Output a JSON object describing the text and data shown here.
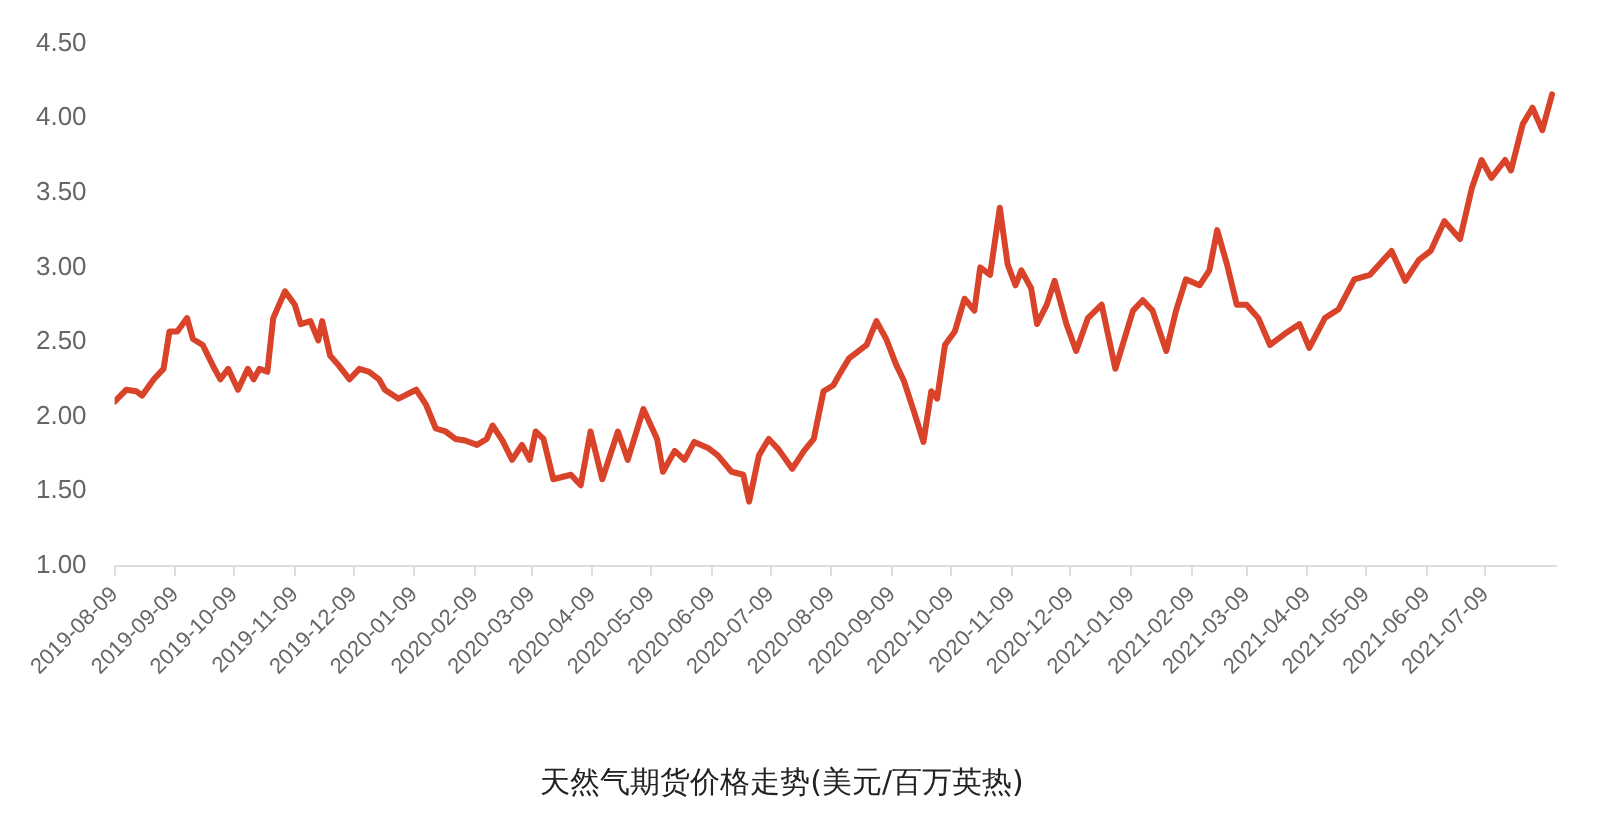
{
  "chart_data": {
    "type": "line",
    "title": "天然气期货价格走势(美元/百万英热)",
    "x": [
      "2019-08-09",
      "2019-08-15",
      "2019-08-20",
      "2019-08-23",
      "2019-08-29",
      "2019-09-03",
      "2019-09-06",
      "2019-09-10",
      "2019-09-15",
      "2019-09-18",
      "2019-09-23",
      "2019-09-29",
      "2019-10-02",
      "2019-10-06",
      "2019-10-11",
      "2019-10-16",
      "2019-10-19",
      "2019-10-22",
      "2019-10-26",
      "2019-10-29",
      "2019-11-04",
      "2019-11-09",
      "2019-11-12",
      "2019-11-17",
      "2019-11-21",
      "2019-11-23",
      "2019-11-27",
      "2019-12-01",
      "2019-12-07",
      "2019-12-12",
      "2019-12-17",
      "2019-12-22",
      "2019-12-25",
      "2020-01-01",
      "2020-01-10",
      "2020-01-15",
      "2020-01-20",
      "2020-01-25",
      "2020-01-30",
      "2020-02-04",
      "2020-02-10",
      "2020-02-15",
      "2020-02-18",
      "2020-02-23",
      "2020-02-28",
      "2020-03-04",
      "2020-03-08",
      "2020-03-11",
      "2020-03-15",
      "2020-03-20",
      "2020-03-29",
      "2020-04-03",
      "2020-04-08",
      "2020-04-14",
      "2020-04-22",
      "2020-04-27",
      "2020-05-05",
      "2020-05-12",
      "2020-05-15",
      "2020-05-21",
      "2020-05-26",
      "2020-05-31",
      "2020-06-07",
      "2020-06-12",
      "2020-06-19",
      "2020-06-25",
      "2020-06-28",
      "2020-07-03",
      "2020-07-08",
      "2020-07-13",
      "2020-07-20",
      "2020-07-26",
      "2020-07-31",
      "2020-08-05",
      "2020-08-10",
      "2020-08-13",
      "2020-08-18",
      "2020-08-23",
      "2020-08-27",
      "2020-09-01",
      "2020-09-06",
      "2020-09-11",
      "2020-09-15",
      "2020-09-20",
      "2020-09-25",
      "2020-09-29",
      "2020-10-02",
      "2020-10-06",
      "2020-10-11",
      "2020-10-16",
      "2020-10-21",
      "2020-10-24",
      "2020-10-29",
      "2020-11-03",
      "2020-11-07",
      "2020-11-11",
      "2020-11-14",
      "2020-11-19",
      "2020-11-22",
      "2020-11-27",
      "2020-12-01",
      "2020-12-07",
      "2020-12-12",
      "2020-12-18",
      "2020-12-25",
      "2021-01-01",
      "2021-01-10",
      "2021-01-15",
      "2021-01-20",
      "2021-01-27",
      "2021-02-01",
      "2021-02-06",
      "2021-02-13",
      "2021-02-18",
      "2021-02-22",
      "2021-02-27",
      "2021-03-04",
      "2021-03-09",
      "2021-03-15",
      "2021-03-21",
      "2021-03-28",
      "2021-04-05",
      "2021-04-10",
      "2021-04-18",
      "2021-04-25",
      "2021-05-03",
      "2021-05-11",
      "2021-05-22",
      "2021-05-29",
      "2021-06-05",
      "2021-06-11",
      "2021-06-18",
      "2021-06-26",
      "2021-07-02",
      "2021-07-07",
      "2021-07-12",
      "2021-07-19",
      "2021-07-22",
      "2021-07-28",
      "2021-08-02",
      "2021-08-07",
      "2021-08-12"
    ],
    "series": [
      {
        "color": "#d9432a",
        "values": [
          2.1,
          2.18,
          2.17,
          2.14,
          2.25,
          2.32,
          2.57,
          2.57,
          2.66,
          2.52,
          2.48,
          2.32,
          2.25,
          2.32,
          2.18,
          2.32,
          2.25,
          2.32,
          2.3,
          2.66,
          2.84,
          2.75,
          2.62,
          2.64,
          2.51,
          2.64,
          2.41,
          2.35,
          2.25,
          2.32,
          2.3,
          2.25,
          2.18,
          2.12,
          2.18,
          2.08,
          1.92,
          1.9,
          1.85,
          1.84,
          1.81,
          1.85,
          1.94,
          1.84,
          1.71,
          1.81,
          1.71,
          1.9,
          1.85,
          1.58,
          1.61,
          1.54,
          1.9,
          1.58,
          1.9,
          1.71,
          2.05,
          1.85,
          1.63,
          1.77,
          1.71,
          1.83,
          1.79,
          1.74,
          1.63,
          1.61,
          1.43,
          1.74,
          1.85,
          1.78,
          1.65,
          1.77,
          1.85,
          2.17,
          2.21,
          2.28,
          2.39,
          2.44,
          2.48,
          2.64,
          2.52,
          2.35,
          2.24,
          2.04,
          1.83,
          2.17,
          2.12,
          2.48,
          2.57,
          2.79,
          2.71,
          3.0,
          2.95,
          3.4,
          3.02,
          2.88,
          2.98,
          2.86,
          2.62,
          2.75,
          2.91,
          2.62,
          2.44,
          2.66,
          2.75,
          2.32,
          2.71,
          2.78,
          2.71,
          2.44,
          2.71,
          2.92,
          2.88,
          2.98,
          3.25,
          3.02,
          2.75,
          2.75,
          2.66,
          2.48,
          2.55,
          2.62,
          2.46,
          2.66,
          2.72,
          2.92,
          2.95,
          3.11,
          2.91,
          3.05,
          3.11,
          3.31,
          3.19,
          3.53,
          3.72,
          3.6,
          3.72,
          3.65,
          3.96,
          4.07,
          3.92,
          4.16
        ]
      }
    ],
    "xlim": [
      "2019-08-09",
      "2021-08-14"
    ],
    "xticks": [
      "2019-08-09",
      "2019-09-09",
      "2019-10-09",
      "2019-11-09",
      "2019-12-09",
      "2020-01-09",
      "2020-02-09",
      "2020-03-09",
      "2020-04-09",
      "2020-05-09",
      "2020-06-09",
      "2020-07-09",
      "2020-08-09",
      "2020-09-09",
      "2020-10-09",
      "2020-11-09",
      "2020-12-09",
      "2021-01-09",
      "2021-02-09",
      "2021-03-09",
      "2021-04-09",
      "2021-05-09",
      "2021-06-09",
      "2021-07-09"
    ],
    "ylim": [
      1.0,
      4.5
    ],
    "yticks": [
      {
        "value": 1,
        "label": "1.00"
      },
      {
        "value": 1.5,
        "label": "1.50"
      },
      {
        "value": 2,
        "label": "2.00"
      },
      {
        "value": 2.5,
        "label": "2.50"
      },
      {
        "value": 3,
        "label": "3.00"
      },
      {
        "value": 3.5,
        "label": "3.50"
      },
      {
        "value": 4,
        "label": "4.00"
      },
      {
        "value": 4.5,
        "label": "4.50"
      }
    ],
    "grid": false,
    "marker": "none",
    "line_style": "solid"
  }
}
